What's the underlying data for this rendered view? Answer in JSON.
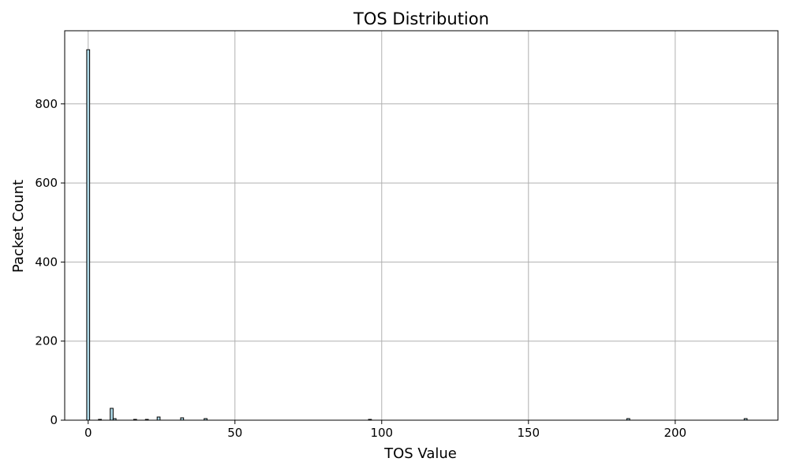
{
  "chart_data": {
    "type": "bar",
    "title": "TOS Distribution",
    "xlabel": "TOS Value",
    "ylabel": "Packet Count",
    "xlim": [
      -8,
      235
    ],
    "ylim": [
      0,
      985
    ],
    "xticks": [
      0,
      50,
      100,
      150,
      200
    ],
    "yticks": [
      0,
      200,
      400,
      600,
      800
    ],
    "grid": true,
    "bar_width": 1,
    "bar_color": "#add8e6",
    "edge_color": "#000000",
    "x": [
      0,
      4,
      8,
      9,
      16,
      20,
      24,
      32,
      40,
      96,
      184,
      224
    ],
    "values": [
      937,
      2,
      30,
      4,
      2,
      2,
      8,
      6,
      4,
      2,
      4,
      4
    ]
  }
}
